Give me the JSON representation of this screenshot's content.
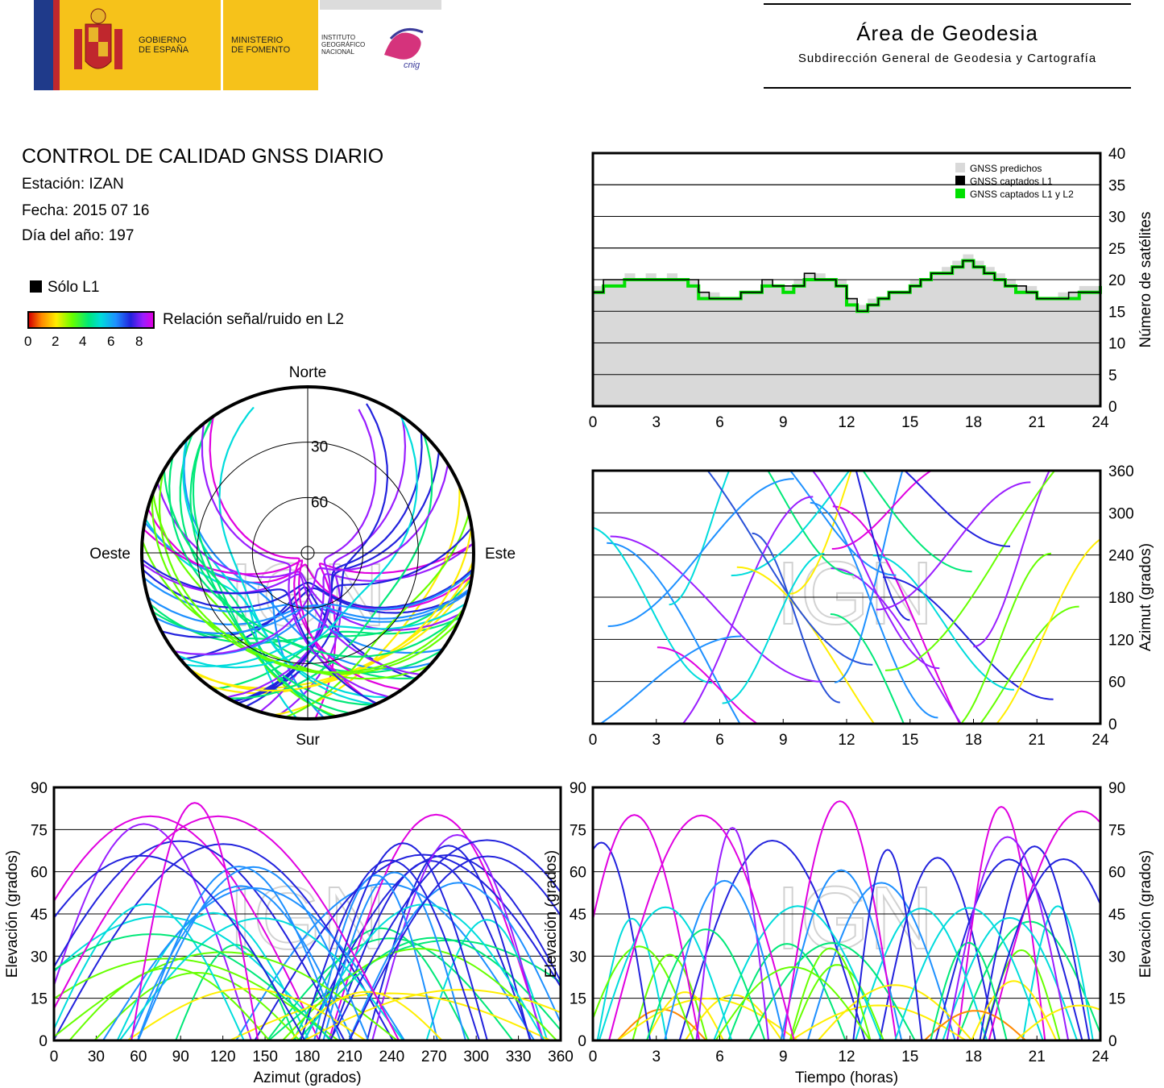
{
  "header": {
    "gobierno": [
      "GOBIERNO",
      "DE ESPAÑA"
    ],
    "ministerio": [
      "MINISTERIO",
      "DE FOMENTO"
    ],
    "instituto": [
      "INSTITUTO",
      "GEOGRÁFICO",
      "NACIONAL"
    ],
    "cnig": "cnig",
    "area_title": "Área de Geodesia",
    "area_subtitle": "Subdirección General de Geodesia y Cartografía",
    "colors": {
      "spain_yellow": "#f6c21a",
      "spain_red": "#c0272d",
      "eu_blue": "#1f3a8a"
    }
  },
  "report": {
    "title": "CONTROL DE CALIDAD GNSS DIARIO",
    "station": "Estación: IZAN",
    "date": "Fecha: 2015 07 16",
    "doy": "Día del año: 197"
  },
  "legend": {
    "l1_only": "Sólo L1",
    "snr_label": "Relación señal/ruido en L2",
    "snr_ticks": [
      "0",
      "2",
      "4",
      "6",
      "8"
    ]
  },
  "watermark": "IGN",
  "chart_data": [
    {
      "id": "skyplot",
      "type": "scatter",
      "projection": "polar",
      "directions": {
        "north": "Norte",
        "south": "Sur",
        "east": "Este",
        "west": "Oeste"
      },
      "ring_labels": [
        "30",
        "60"
      ],
      "elevation_rings": [
        30,
        60
      ],
      "note_on_color": "color scale = SNR L2 (0–8)"
    },
    {
      "id": "satellites",
      "type": "area",
      "x": [
        0,
        0.5,
        1,
        1.5,
        2,
        2.5,
        3,
        3.5,
        4,
        4.5,
        5,
        5.5,
        6,
        6.5,
        7,
        7.5,
        8,
        8.5,
        9,
        9.5,
        10,
        10.5,
        11,
        11.5,
        12,
        12.5,
        13,
        13.5,
        14,
        14.5,
        15,
        15.5,
        16,
        16.5,
        17,
        17.5,
        18,
        18.5,
        19,
        19.5,
        20,
        20.5,
        21,
        21.5,
        22,
        22.5,
        23,
        23.5,
        24
      ],
      "series": [
        {
          "name": "GNSS predichos",
          "values": [
            19,
            20,
            20,
            21,
            20,
            21,
            20,
            21,
            20,
            20,
            18,
            18,
            17,
            17,
            18,
            18,
            20,
            19,
            19,
            20,
            21,
            21,
            20,
            20,
            17,
            16,
            17,
            17,
            18,
            18,
            20,
            20,
            21,
            22,
            23,
            24,
            23,
            22,
            21,
            20,
            19,
            19,
            17,
            17,
            18,
            18,
            19,
            19,
            20
          ]
        },
        {
          "name": "GNSS captados L1",
          "values": [
            18,
            20,
            20,
            20,
            20,
            20,
            20,
            20,
            20,
            20,
            18,
            17,
            17,
            17,
            18,
            18,
            20,
            19,
            19,
            19,
            21,
            20,
            20,
            19,
            17,
            15,
            16,
            17,
            18,
            18,
            19,
            20,
            21,
            21,
            22,
            23,
            22,
            21,
            20,
            19,
            19,
            18,
            17,
            17,
            17,
            18,
            18,
            18,
            20
          ]
        },
        {
          "name": "GNSS captados L1 y L2",
          "values": [
            18,
            19,
            19,
            20,
            20,
            20,
            20,
            20,
            20,
            19,
            17,
            17,
            17,
            17,
            18,
            18,
            19,
            19,
            18,
            19,
            20,
            20,
            20,
            19,
            16,
            15,
            16,
            17,
            18,
            18,
            19,
            20,
            21,
            21,
            22,
            23,
            22,
            21,
            20,
            19,
            18,
            18,
            17,
            17,
            17,
            17,
            18,
            18,
            19
          ]
        }
      ],
      "series_colors": [
        "#d9d9d9",
        "#000000",
        "#00e000"
      ],
      "xlim": [
        0,
        24
      ],
      "ylim": [
        0,
        40
      ],
      "x_ticks": [
        0,
        3,
        6,
        9,
        12,
        15,
        18,
        21,
        24
      ],
      "y_ticks": [
        0,
        5,
        10,
        15,
        20,
        25,
        30,
        35,
        40
      ],
      "ylabel": "Número de satélites",
      "legend": "top-right"
    },
    {
      "id": "azimuth_time",
      "type": "scatter",
      "xlim": [
        0,
        24
      ],
      "ylim": [
        0,
        360
      ],
      "x_ticks": [
        0,
        3,
        6,
        9,
        12,
        15,
        18,
        21,
        24
      ],
      "y_ticks": [
        0,
        60,
        120,
        180,
        240,
        300,
        360
      ],
      "ylabel": "Azimut (grados)"
    },
    {
      "id": "elev_azimuth",
      "type": "scatter",
      "xlim": [
        0,
        360
      ],
      "ylim": [
        0,
        90
      ],
      "x_ticks": [
        0,
        30,
        60,
        90,
        120,
        150,
        180,
        210,
        240,
        270,
        300,
        330,
        360
      ],
      "y_ticks": [
        0,
        15,
        30,
        45,
        60,
        75,
        90
      ],
      "xlabel": "Azimut (grados)",
      "ylabel": "Elevación (grados)"
    },
    {
      "id": "elev_time",
      "type": "scatter",
      "xlim": [
        0,
        24
      ],
      "ylim": [
        0,
        90
      ],
      "x_ticks": [
        0,
        3,
        6,
        9,
        12,
        15,
        18,
        21,
        24
      ],
      "y_ticks": [
        0,
        15,
        30,
        45,
        60,
        75,
        90
      ],
      "xlabel": "Tiempo (horas)",
      "ylabel": "Elevación (grados)"
    }
  ]
}
